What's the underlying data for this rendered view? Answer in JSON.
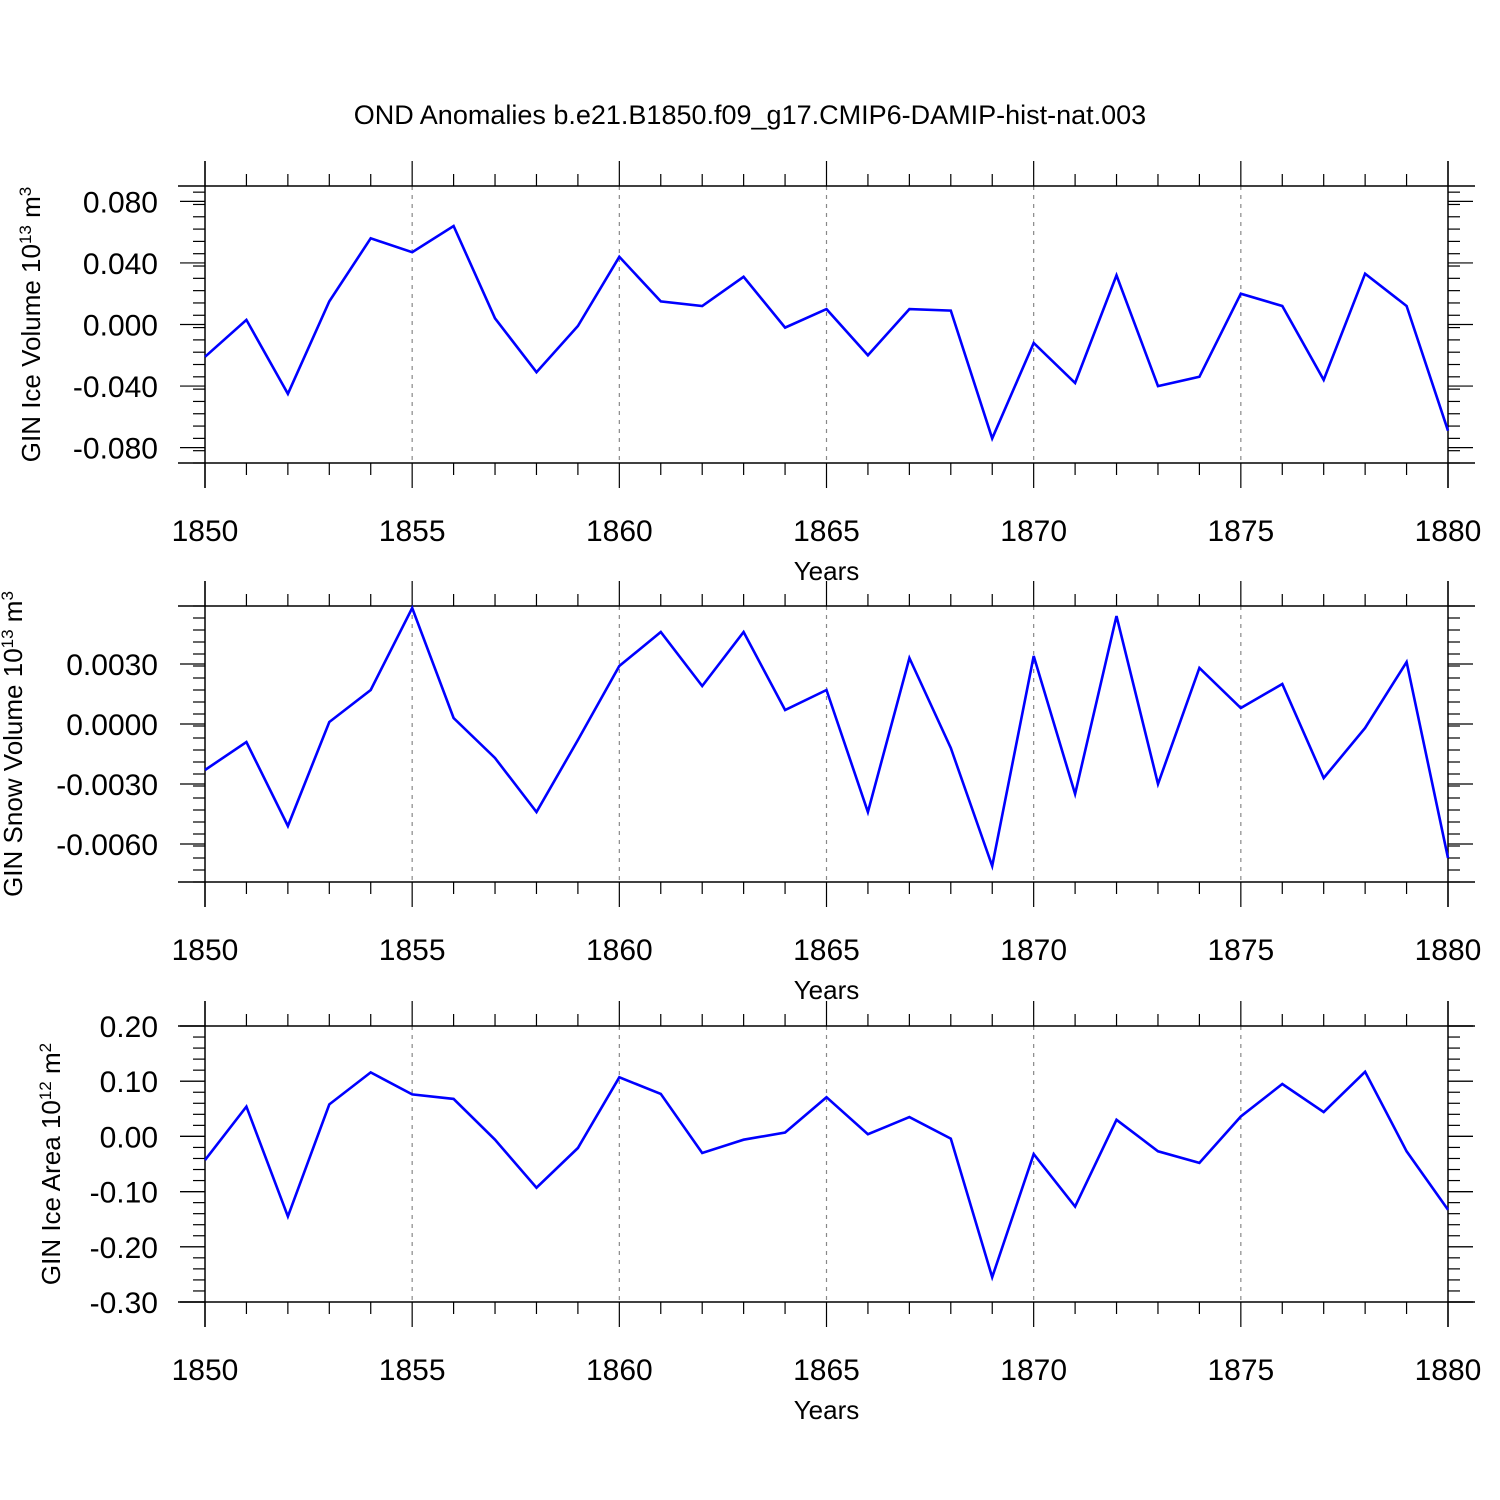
{
  "title": "OND Anomalies b.e21.B1850.f09_g17.CMIP6-DAMIP-hist-nat.003",
  "colors": {
    "series": "#0000ff",
    "axes": "#000000",
    "grid": "#888888"
  },
  "chart_data": [
    {
      "type": "line",
      "ylabel": {
        "base": "GIN Ice Volume 10",
        "sup1": "13",
        "mid": " m",
        "sup2": "3"
      },
      "xlabel": "Years",
      "xlim": [
        1850,
        1880
      ],
      "ylim": [
        -0.09,
        0.09
      ],
      "xticks": [
        1850,
        1855,
        1860,
        1865,
        1870,
        1875,
        1880
      ],
      "yticks": [
        -0.08,
        -0.04,
        0.0,
        0.04,
        0.08
      ],
      "ytick_labels": [
        "-0.080",
        "-0.040",
        "0.000",
        "0.040",
        "0.080"
      ],
      "x": [
        1850,
        1851,
        1852,
        1853,
        1854,
        1855,
        1856,
        1857,
        1858,
        1859,
        1860,
        1861,
        1862,
        1863,
        1864,
        1865,
        1866,
        1867,
        1868,
        1869,
        1870,
        1871,
        1872,
        1873,
        1874,
        1875,
        1876,
        1877,
        1878,
        1879,
        1880
      ],
      "values": [
        -0.021,
        0.003,
        -0.045,
        0.015,
        0.056,
        0.047,
        0.064,
        0.004,
        -0.031,
        -0.001,
        0.044,
        0.015,
        0.012,
        0.031,
        -0.002,
        0.01,
        -0.02,
        0.01,
        0.009,
        -0.074,
        -0.012,
        -0.038,
        0.032,
        -0.04,
        -0.034,
        0.02,
        0.012,
        -0.036,
        0.033,
        0.012,
        -0.069
      ],
      "grid_x": [
        1855,
        1860,
        1865,
        1870,
        1875
      ]
    },
    {
      "type": "line",
      "ylabel": {
        "base": "GIN Snow Volume 10",
        "sup1": "13",
        "mid": " m",
        "sup2": "3"
      },
      "xlabel": "Years",
      "xlim": [
        1850,
        1880
      ],
      "ylim": [
        -0.0079,
        0.0059
      ],
      "xticks": [
        1850,
        1855,
        1860,
        1865,
        1870,
        1875,
        1880
      ],
      "yticks": [
        -0.006,
        -0.003,
        0.0,
        0.003
      ],
      "ytick_labels": [
        "-0.0060",
        "-0.0030",
        "0.0000",
        "0.0030"
      ],
      "x": [
        1850,
        1851,
        1852,
        1853,
        1854,
        1855,
        1856,
        1857,
        1858,
        1859,
        1860,
        1861,
        1862,
        1863,
        1864,
        1865,
        1866,
        1867,
        1868,
        1869,
        1870,
        1871,
        1872,
        1873,
        1874,
        1875,
        1876,
        1877,
        1878,
        1879,
        1880
      ],
      "values": [
        -0.0023,
        -0.0009,
        -0.0051,
        0.0001,
        0.0017,
        0.0058,
        0.0003,
        -0.0017,
        -0.0044,
        -0.0008,
        0.0029,
        0.0046,
        0.0019,
        0.0046,
        0.0007,
        0.0017,
        -0.0044,
        0.0033,
        -0.0012,
        -0.0071,
        0.0034,
        -0.0035,
        0.0054,
        -0.003,
        0.0028,
        0.0008,
        0.002,
        -0.0027,
        -0.0002,
        0.0031,
        -0.0067
      ],
      "grid_x": [
        1855,
        1860,
        1865,
        1870,
        1875
      ]
    },
    {
      "type": "line",
      "ylabel": {
        "base": "GIN Ice Area 10",
        "sup1": "12",
        "mid": " m",
        "sup2": "2"
      },
      "xlabel": "Years",
      "xlim": [
        1850,
        1880
      ],
      "ylim": [
        -0.3,
        0.2
      ],
      "xticks": [
        1850,
        1855,
        1860,
        1865,
        1870,
        1875,
        1880
      ],
      "yticks": [
        -0.3,
        -0.2,
        -0.1,
        0.0,
        0.1,
        0.2
      ],
      "ytick_labels": [
        "-0.30",
        "-0.20",
        "-0.10",
        "0.00",
        "0.10",
        "0.20"
      ],
      "x": [
        1850,
        1851,
        1852,
        1853,
        1854,
        1855,
        1856,
        1857,
        1858,
        1859,
        1860,
        1861,
        1862,
        1863,
        1864,
        1865,
        1866,
        1867,
        1868,
        1869,
        1870,
        1871,
        1872,
        1873,
        1874,
        1875,
        1876,
        1877,
        1878,
        1879,
        1880
      ],
      "values": [
        -0.043,
        0.054,
        -0.145,
        0.058,
        0.116,
        0.076,
        0.068,
        -0.006,
        -0.093,
        -0.021,
        0.107,
        0.077,
        -0.03,
        -0.006,
        0.007,
        0.071,
        0.004,
        0.035,
        -0.004,
        -0.255,
        -0.032,
        -0.127,
        0.03,
        -0.027,
        -0.048,
        0.036,
        0.095,
        0.044,
        0.117,
        -0.027,
        -0.133
      ],
      "grid_x": [
        1855,
        1860,
        1865,
        1870,
        1875
      ]
    }
  ]
}
